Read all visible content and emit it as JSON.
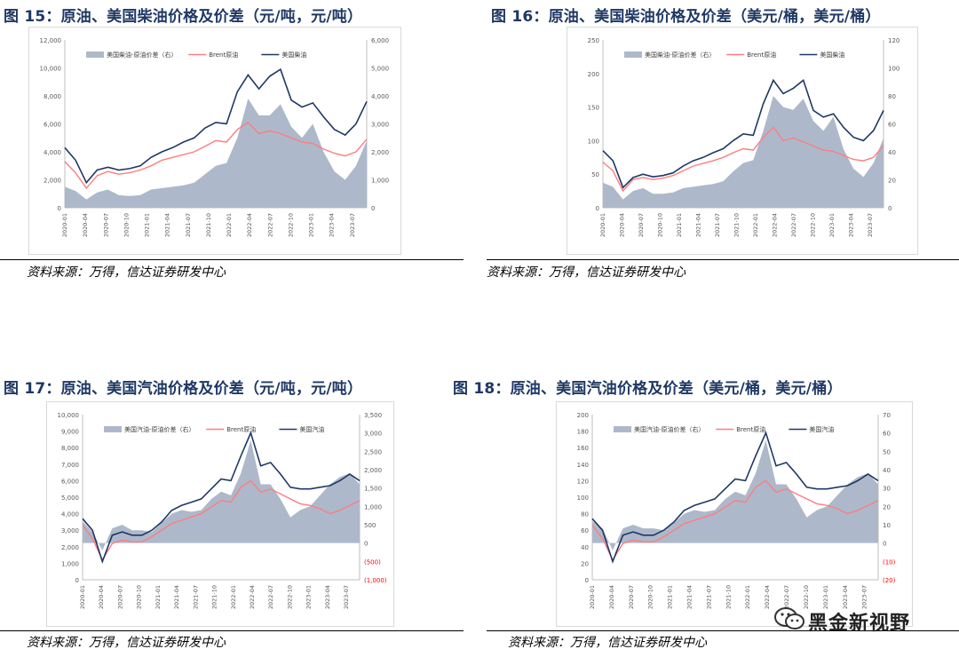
{
  "panels": [
    {
      "title": "图 15：原油、美国柴油价格及价差（元/吨，元/吨）",
      "source": "资料来源：万得，信达证券研发中心"
    },
    {
      "title": "图 16：原油、美国柴油价格及价差（美元/桶，美元/桶）",
      "source": "资料来源：万得，信达证券研发中心"
    },
    {
      "title": "图 17：原油、美国汽油价格及价差（元/吨，元/吨）",
      "source": "资料来源：万得，信达证券研发中心"
    },
    {
      "title": "图 18：原油、美国汽油价格及价差（美元/桶，美元/桶）",
      "source": "资料来源：万得，信达证券研发中心"
    }
  ],
  "watermark": {
    "text": "黑金新视野",
    "icon": "wechat-icon"
  },
  "colors": {
    "spread": "#adb9ca",
    "brent": "#ff7c80",
    "product": "#1f3864",
    "title": "#1f3864",
    "negative": "#ff0000"
  },
  "chart_data": [
    {
      "type": "area+line",
      "x_labels": [
        "2020-01",
        "2020-04",
        "2020-07",
        "2020-10",
        "2021-01",
        "2021-04",
        "2021-07",
        "2021-10",
        "2022-01",
        "2022-04",
        "2022-07",
        "2022-10",
        "2023-01",
        "2023-04",
        "2023-07"
      ],
      "left_ticks": [
        "0",
        "2,000",
        "4,000",
        "6,000",
        "8,000",
        "10,000",
        "12,000"
      ],
      "right_ticks": [
        "0",
        "1,000",
        "2,000",
        "3,000",
        "4,000",
        "5,000",
        "6,000"
      ],
      "left_range": [
        0,
        12000
      ],
      "right_range": [
        0,
        6000
      ],
      "series": [
        {
          "name": "美国柴油-原油价差（右）",
          "axis": "right",
          "kind": "area",
          "values": [
            750,
            600,
            300,
            550,
            650,
            450,
            420,
            450,
            650,
            700,
            750,
            800,
            900,
            1200,
            1500,
            1600,
            2500,
            3900,
            3300,
            3300,
            3700,
            2900,
            2500,
            3000,
            2000,
            1300,
            1000,
            1500,
            2400
          ]
        },
        {
          "name": "Brent原油",
          "axis": "left",
          "kind": "line",
          "values": [
            3300,
            2500,
            1400,
            2300,
            2600,
            2400,
            2500,
            2700,
            3000,
            3400,
            3600,
            3800,
            4000,
            4400,
            4800,
            4700,
            5600,
            6100,
            5300,
            5500,
            5300,
            5000,
            4700,
            4600,
            4200,
            3900,
            3700,
            4000,
            4900
          ]
        },
        {
          "name": "美国柴油",
          "axis": "left",
          "kind": "line",
          "values": [
            4300,
            3400,
            1800,
            2700,
            2900,
            2700,
            2800,
            3000,
            3600,
            4000,
            4300,
            4700,
            5000,
            5700,
            6100,
            6000,
            8300,
            9500,
            8500,
            9400,
            9900,
            7700,
            7200,
            7500,
            6500,
            5600,
            5200,
            6000,
            7600
          ]
        }
      ]
    },
    {
      "type": "area+line",
      "x_labels": [
        "2020-01",
        "2020-04",
        "2020-07",
        "2020-10",
        "2021-01",
        "2021-04",
        "2021-07",
        "2021-10",
        "2022-01",
        "2022-04",
        "2022-07",
        "2022-10",
        "2023-01",
        "2023-04",
        "2023-07"
      ],
      "left_ticks": [
        "0",
        "50",
        "100",
        "150",
        "200",
        "250"
      ],
      "right_ticks": [
        "0",
        "20",
        "40",
        "60",
        "80",
        "100",
        "120"
      ],
      "left_range": [
        0,
        250
      ],
      "right_range": [
        0,
        120
      ],
      "series": [
        {
          "name": "美国柴油-原油价差（右）",
          "axis": "right",
          "kind": "area",
          "values": [
            18,
            15,
            6,
            12,
            14,
            10,
            10,
            11,
            14,
            15,
            16,
            17,
            19,
            26,
            32,
            34,
            55,
            80,
            72,
            70,
            78,
            62,
            55,
            65,
            42,
            28,
            22,
            32,
            50
          ]
        },
        {
          "name": "Brent原油",
          "axis": "left",
          "kind": "line",
          "values": [
            68,
            55,
            25,
            42,
            45,
            42,
            44,
            48,
            55,
            62,
            66,
            70,
            75,
            82,
            88,
            86,
            105,
            120,
            100,
            104,
            98,
            92,
            86,
            84,
            78,
            72,
            70,
            75,
            93
          ]
        },
        {
          "name": "美国柴油",
          "axis": "left",
          "kind": "line",
          "values": [
            85,
            70,
            30,
            45,
            50,
            46,
            48,
            52,
            62,
            70,
            75,
            82,
            88,
            100,
            110,
            108,
            155,
            190,
            170,
            178,
            190,
            145,
            135,
            140,
            120,
            105,
            100,
            115,
            145
          ]
        }
      ]
    },
    {
      "type": "area+line",
      "x_labels": [
        "2020-01",
        "2020-04",
        "2020-07",
        "2020-10",
        "2021-01",
        "2021-04",
        "2021-07",
        "2021-10",
        "2022-01",
        "2022-04",
        "2022-07",
        "2022-10",
        "2023-01",
        "2023-04",
        "2023-07"
      ],
      "left_ticks": [
        "0",
        "1,000",
        "2,000",
        "3,000",
        "4,000",
        "5,000",
        "6,000",
        "7,000",
        "8,000",
        "9,000",
        "10,000"
      ],
      "right_ticks": [
        "(1,000)",
        "(500)",
        "0",
        "500",
        "1,000",
        "1,500",
        "2,000",
        "2,500",
        "3,000",
        "3,500"
      ],
      "left_range": [
        0,
        10000
      ],
      "right_range": [
        -1000,
        3500
      ],
      "series": [
        {
          "name": "美国汽油-原油价差（右）",
          "axis": "right",
          "kind": "area",
          "values": [
            600,
            300,
            -200,
            400,
            500,
            350,
            350,
            300,
            550,
            800,
            900,
            850,
            900,
            1200,
            1400,
            1300,
            1900,
            2800,
            1600,
            1600,
            1200,
            700,
            900,
            1000,
            1300,
            1600,
            1800,
            1900,
            1600
          ]
        },
        {
          "name": "Brent原油",
          "axis": "left",
          "kind": "line",
          "values": [
            3300,
            2500,
            1200,
            2200,
            2400,
            2300,
            2300,
            2600,
            3000,
            3400,
            3600,
            3800,
            4000,
            4400,
            4800,
            4700,
            5600,
            6000,
            5300,
            5500,
            5200,
            4900,
            4600,
            4500,
            4300,
            4000,
            4200,
            4500,
            4800
          ]
        },
        {
          "name": "美国汽油",
          "axis": "left",
          "kind": "line",
          "values": [
            3700,
            3000,
            1100,
            2700,
            2900,
            2700,
            2700,
            3000,
            3500,
            4200,
            4500,
            4700,
            4900,
            5500,
            6100,
            6000,
            7500,
            8900,
            6900,
            7100,
            6400,
            5600,
            5500,
            5500,
            5600,
            5700,
            6000,
            6400,
            6000
          ]
        }
      ]
    },
    {
      "type": "area+line",
      "x_labels": [
        "2020-01",
        "2020-04",
        "2020-07",
        "2020-10",
        "2021-01",
        "2021-04",
        "2021-07",
        "2021-10",
        "2022-01",
        "2022-04",
        "2022-07",
        "2022-10",
        "2023-01",
        "2023-04",
        "2023-07"
      ],
      "left_ticks": [
        "0",
        "20",
        "40",
        "60",
        "80",
        "100",
        "120",
        "140",
        "160",
        "180",
        "200"
      ],
      "right_ticks": [
        "(20)",
        "(10)",
        "0",
        "10",
        "20",
        "30",
        "40",
        "50",
        "60",
        "70"
      ],
      "left_range": [
        0,
        200
      ],
      "right_range": [
        -20,
        70
      ],
      "series": [
        {
          "name": "美国汽油-原油价差（右）",
          "axis": "right",
          "kind": "area",
          "values": [
            12,
            8,
            -4,
            8,
            10,
            8,
            8,
            7,
            11,
            16,
            18,
            17,
            18,
            24,
            28,
            26,
            38,
            56,
            32,
            32,
            24,
            14,
            18,
            20,
            26,
            32,
            36,
            38,
            32
          ]
        },
        {
          "name": "Brent原油",
          "axis": "left",
          "kind": "line",
          "values": [
            66,
            50,
            24,
            44,
            48,
            46,
            46,
            52,
            60,
            68,
            72,
            76,
            80,
            88,
            96,
            94,
            112,
            120,
            106,
            110,
            104,
            98,
            92,
            90,
            86,
            80,
            84,
            90,
            96
          ]
        },
        {
          "name": "美国汽油",
          "axis": "left",
          "kind": "line",
          "values": [
            74,
            60,
            22,
            54,
            58,
            54,
            54,
            60,
            70,
            84,
            90,
            94,
            98,
            110,
            122,
            120,
            150,
            178,
            138,
            142,
            128,
            112,
            110,
            110,
            112,
            114,
            120,
            128,
            120
          ]
        }
      ]
    }
  ]
}
